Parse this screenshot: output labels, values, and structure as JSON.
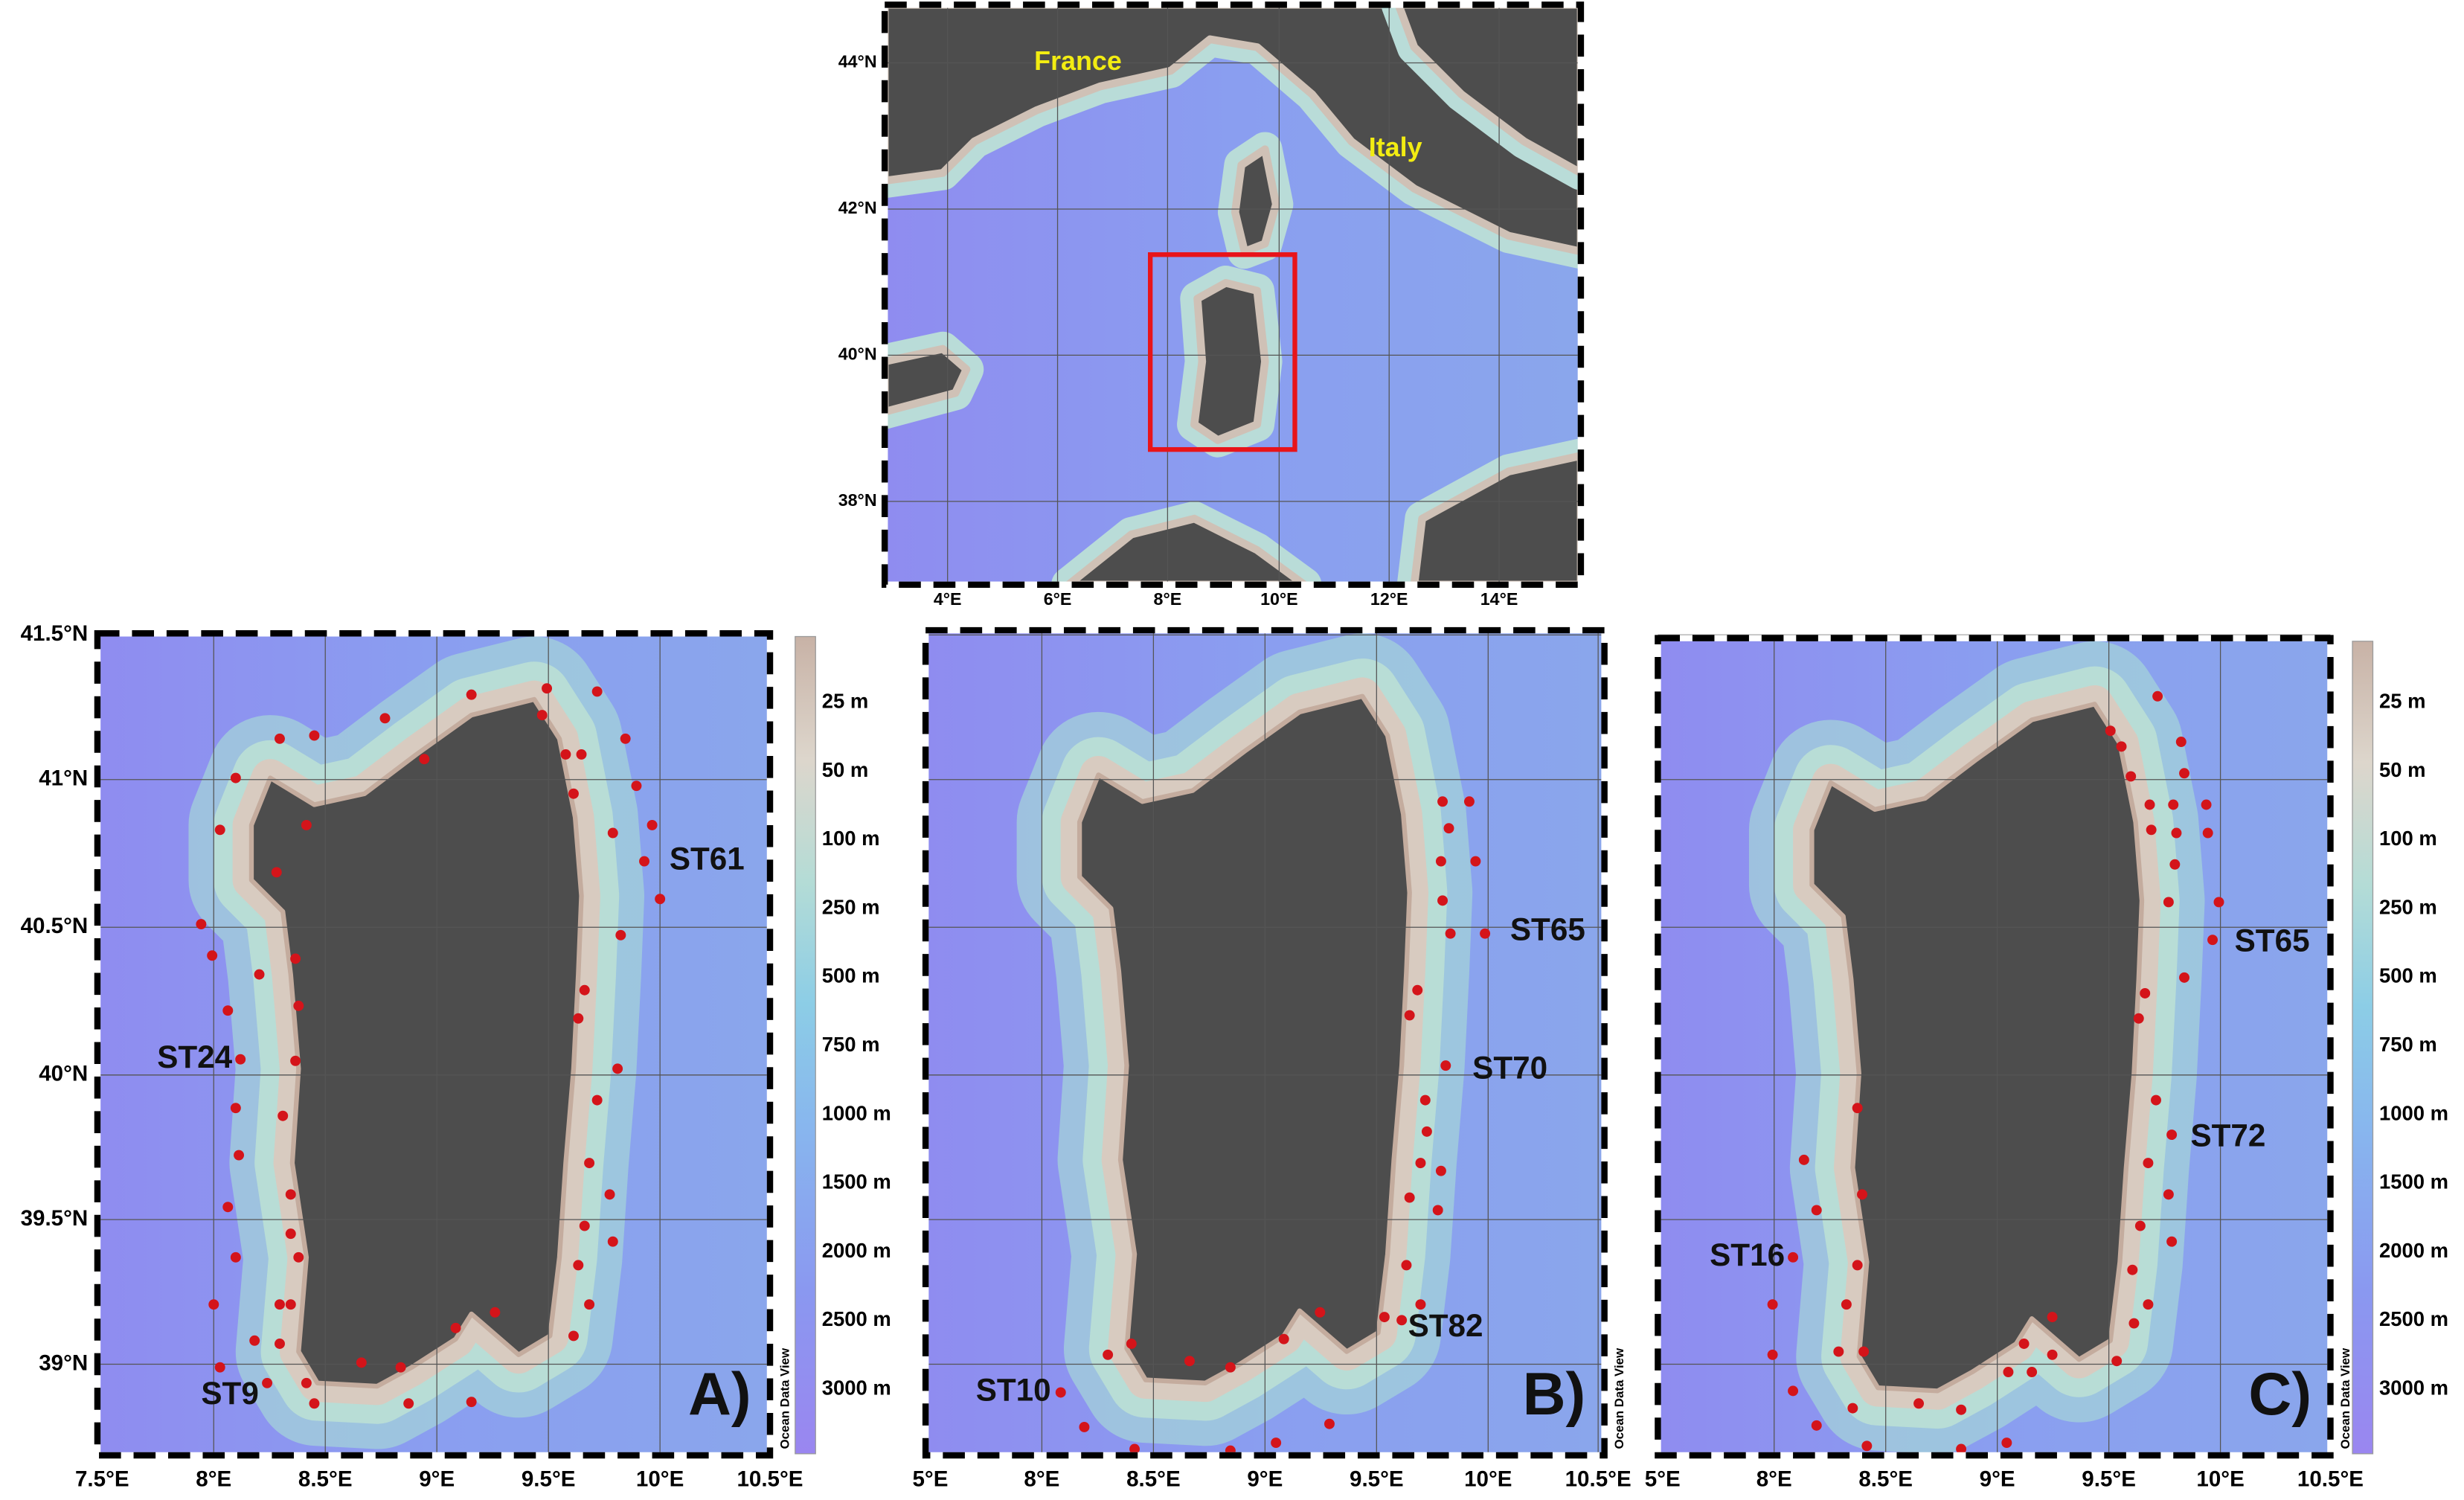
{
  "overview": {
    "labels": [
      "France",
      "Italy"
    ],
    "lat_ticks": [
      "44°N",
      "42°N",
      "40°N",
      "38°N"
    ],
    "lon_ticks": [
      "4°E",
      "6°E",
      "8°E",
      "10°E",
      "12°E",
      "14°E"
    ]
  },
  "panels": [
    {
      "label": "A)",
      "lat_ticks": [
        "41.5°N",
        "41°N",
        "40.5°N",
        "40°N",
        "39.5°N",
        "39°N"
      ],
      "lon_ticks": [
        "7.5°E",
        "8°E",
        "8.5°E",
        "9°E",
        "9.5°E",
        "10°E",
        "10.5°E"
      ],
      "stations": [
        "ST61",
        "ST24",
        "ST9"
      ],
      "colorbar": [
        "25 m",
        "50 m",
        "100 m",
        "250 m",
        "500 m",
        "750 m",
        "1000 m",
        "1500 m",
        "2000 m",
        "2500 m",
        "3000 m"
      ],
      "credit": "Ocean Data View"
    },
    {
      "label": "B)",
      "lon_ticks": [
        "5°E",
        "8°E",
        "8.5°E",
        "9°E",
        "9.5°E",
        "10°E",
        "10.5°E"
      ],
      "stations": [
        "ST65",
        "ST70",
        "ST10",
        "ST82"
      ],
      "credit": "Ocean Data View"
    },
    {
      "label": "C)",
      "lon_ticks": [
        "5°E",
        "8°E",
        "8.5°E",
        "9°E",
        "9.5°E",
        "10°E",
        "10.5°E"
      ],
      "stations": [
        "ST65",
        "ST72",
        "ST16"
      ],
      "colorbar": [
        "25 m",
        "50 m",
        "100 m",
        "250 m",
        "500 m",
        "750 m",
        "1000 m",
        "1500 m",
        "2000 m",
        "2500 m",
        "3000 m"
      ],
      "credit": "Ocean Data View"
    }
  ]
}
